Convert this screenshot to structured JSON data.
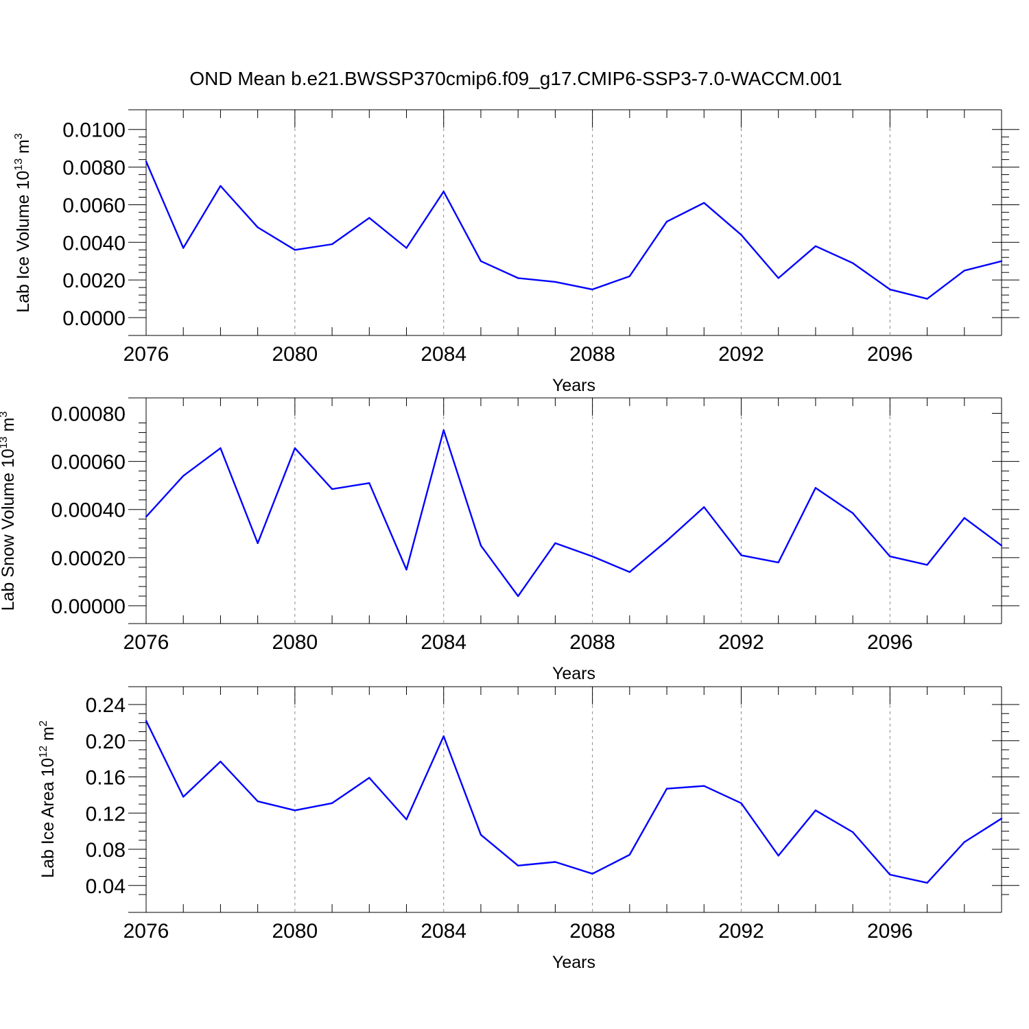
{
  "title": "OND Mean b.e21.BWSSP370cmip6.f09_g17.CMIP6-SSP3-7.0-WACCM.001",
  "colors": {
    "line": "#0000ff",
    "axes": "#000000",
    "grid": "#888888"
  },
  "chart_data": [
    {
      "type": "line",
      "ylabel": "Lab Ice Volume 10",
      "ylabel_sup": "13",
      "ylabel_unit": " m",
      "ylabel_unit_sup": "3",
      "xlabel": "Years",
      "xlim": [
        2076,
        2099
      ],
      "ylim": [
        0,
        0.0101
      ],
      "xticks": [
        2076,
        2080,
        2084,
        2088,
        2092,
        2096
      ],
      "yticks": [
        "0.0000",
        "0.0020",
        "0.0040",
        "0.0060",
        "0.0080",
        "0.0100"
      ],
      "ytick_step": 0.002,
      "y_minor_per_major": 5,
      "grid": "dashed vertical at major x ticks",
      "x": [
        2076,
        2077,
        2078,
        2079,
        2080,
        2081,
        2082,
        2083,
        2084,
        2085,
        2086,
        2087,
        2088,
        2089,
        2090,
        2091,
        2092,
        2093,
        2094,
        2095,
        2096,
        2097,
        2098,
        2099
      ],
      "values": [
        0.0083,
        0.0037,
        0.007,
        0.0048,
        0.0036,
        0.0039,
        0.0053,
        0.0037,
        0.0067,
        0.003,
        0.0021,
        0.0019,
        0.0015,
        0.0022,
        0.0051,
        0.0061,
        0.0044,
        0.0021,
        0.0038,
        0.0029,
        0.0015,
        0.001,
        0.0025,
        0.003
      ]
    },
    {
      "type": "line",
      "ylabel": "Lab Snow Volume 10",
      "ylabel_sup": "13",
      "ylabel_unit": " m",
      "ylabel_unit_sup": "3",
      "xlabel": "Years",
      "xlim": [
        2076,
        2099
      ],
      "ylim": [
        0,
        0.00079
      ],
      "xticks": [
        2076,
        2080,
        2084,
        2088,
        2092,
        2096
      ],
      "yticks": [
        "0.00000",
        "0.00020",
        "0.00040",
        "0.00060",
        "0.00080"
      ],
      "ytick_step": 0.0002,
      "y_minor_per_major": 5,
      "grid": "dashed vertical at major x ticks",
      "x": [
        2076,
        2077,
        2078,
        2079,
        2080,
        2081,
        2082,
        2083,
        2084,
        2085,
        2086,
        2087,
        2088,
        2089,
        2090,
        2091,
        2092,
        2093,
        2094,
        2095,
        2096,
        2097,
        2098,
        2099
      ],
      "values": [
        0.00037,
        0.00054,
        0.000655,
        0.00026,
        0.000655,
        0.000485,
        0.00051,
        0.00015,
        0.00073,
        0.00025,
        4e-05,
        0.00026,
        0.000205,
        0.00014,
        0.00027,
        0.00041,
        0.00021,
        0.00018,
        0.00049,
        0.000385,
        0.000205,
        0.00017,
        0.000365,
        0.00025
      ]
    },
    {
      "type": "line",
      "ylabel": "Lab Ice Area 10",
      "ylabel_sup": "12",
      "ylabel_unit": " m",
      "ylabel_unit_sup": "2",
      "xlabel": "Years",
      "xlim": [
        2076,
        2099
      ],
      "ylim": [
        0.03,
        0.24
      ],
      "xticks": [
        2076,
        2080,
        2084,
        2088,
        2092,
        2096
      ],
      "yticks": [
        "0.04",
        "0.08",
        "0.12",
        "0.16",
        "0.20",
        "0.24"
      ],
      "ytick_step": 0.04,
      "y_minor_per_major": 4,
      "grid": "dashed vertical at major x ticks",
      "x": [
        2076,
        2077,
        2078,
        2079,
        2080,
        2081,
        2082,
        2083,
        2084,
        2085,
        2086,
        2087,
        2088,
        2089,
        2090,
        2091,
        2092,
        2093,
        2094,
        2095,
        2096,
        2097,
        2098,
        2099
      ],
      "values": [
        0.222,
        0.138,
        0.177,
        0.133,
        0.123,
        0.131,
        0.159,
        0.113,
        0.205,
        0.096,
        0.062,
        0.066,
        0.053,
        0.074,
        0.147,
        0.15,
        0.131,
        0.073,
        0.123,
        0.099,
        0.052,
        0.043,
        0.088,
        0.114
      ]
    }
  ]
}
